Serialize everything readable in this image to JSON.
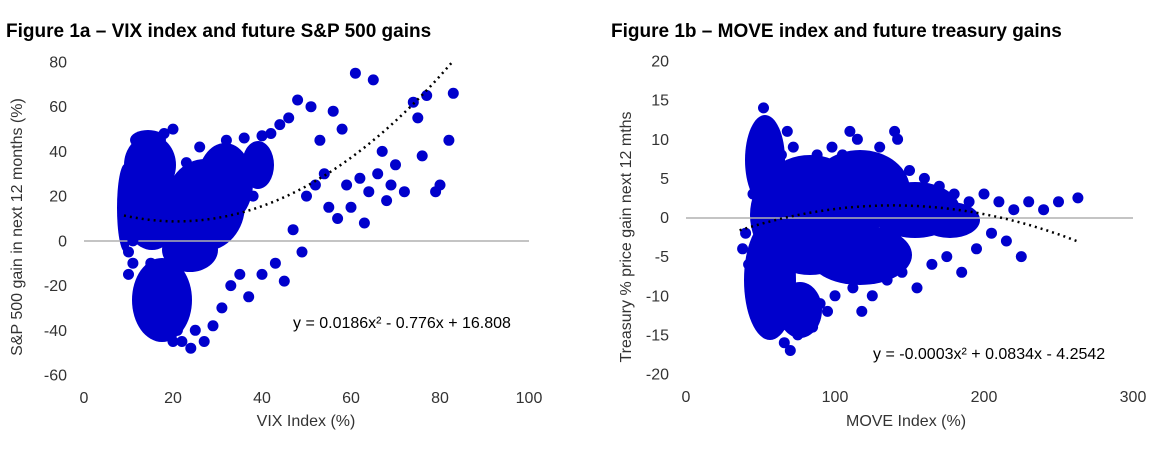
{
  "chart_data": [
    {
      "type": "scatter",
      "title": "Figure 1a – VIX index and future S&P 500 gains",
      "xlabel": "VIX Index  (%)",
      "ylabel": "S&P 500 gain in next 12 months (%)",
      "xlim": [
        0,
        100
      ],
      "ylim": [
        -60,
        80
      ],
      "xticks": [
        "0",
        "20",
        "40",
        "60",
        "80",
        "100"
      ],
      "yticks": [
        "-60",
        "-40",
        "-20",
        "0",
        "20",
        "40",
        "60",
        "80"
      ],
      "grid": false,
      "zero_line": true,
      "marker_color": "#0000CC",
      "trendline": {
        "type": "polynomial-2",
        "equation": "y = 0.0186x²  - 0.776x + 16.808",
        "coefficients": [
          0.0186,
          -0.776,
          16.808
        ],
        "x_range": [
          9,
          83
        ]
      },
      "points": [
        [
          10,
          -15
        ],
        [
          10,
          -5
        ],
        [
          11,
          -10
        ],
        [
          11,
          0
        ],
        [
          12,
          5
        ],
        [
          12,
          15
        ],
        [
          13,
          25
        ],
        [
          13,
          35
        ],
        [
          14,
          -20
        ],
        [
          14,
          30
        ],
        [
          15,
          -25
        ],
        [
          15,
          -10
        ],
        [
          16,
          -30
        ],
        [
          16,
          40
        ],
        [
          17,
          -35
        ],
        [
          17,
          45
        ],
        [
          18,
          -40
        ],
        [
          18,
          48
        ],
        [
          19,
          -42
        ],
        [
          20,
          -45
        ],
        [
          20,
          50
        ],
        [
          21,
          -40
        ],
        [
          22,
          -45
        ],
        [
          23,
          35
        ],
        [
          24,
          -48
        ],
        [
          25,
          -40
        ],
        [
          26,
          42
        ],
        [
          27,
          -45
        ],
        [
          28,
          30
        ],
        [
          29,
          -38
        ],
        [
          30,
          40
        ],
        [
          31,
          -30
        ],
        [
          32,
          45
        ],
        [
          33,
          -20
        ],
        [
          34,
          35
        ],
        [
          35,
          -15
        ],
        [
          36,
          46
        ],
        [
          37,
          -25
        ],
        [
          38,
          20
        ],
        [
          40,
          -15
        ],
        [
          40,
          47
        ],
        [
          42,
          48
        ],
        [
          43,
          -10
        ],
        [
          44,
          52
        ],
        [
          45,
          -18
        ],
        [
          46,
          55
        ],
        [
          47,
          5
        ],
        [
          48,
          63
        ],
        [
          49,
          -5
        ],
        [
          50,
          20
        ],
        [
          51,
          60
        ],
        [
          52,
          25
        ],
        [
          53,
          45
        ],
        [
          54,
          30
        ],
        [
          55,
          15
        ],
        [
          56,
          58
        ],
        [
          57,
          10
        ],
        [
          58,
          50
        ],
        [
          59,
          25
        ],
        [
          60,
          15
        ],
        [
          61,
          75
        ],
        [
          62,
          28
        ],
        [
          63,
          8
        ],
        [
          64,
          22
        ],
        [
          65,
          72
        ],
        [
          66,
          30
        ],
        [
          67,
          40
        ],
        [
          68,
          18
        ],
        [
          69,
          25
        ],
        [
          70,
          34
        ],
        [
          72,
          22
        ],
        [
          74,
          62
        ],
        [
          75,
          55
        ],
        [
          76,
          38
        ],
        [
          77,
          65
        ],
        [
          79,
          22
        ],
        [
          80,
          25
        ],
        [
          82,
          45
        ],
        [
          83,
          66
        ]
      ]
    },
    {
      "type": "scatter",
      "title": "Figure 1b – MOVE index and future treasury gains",
      "xlabel": "MOVE  Index  (%)",
      "ylabel": "Treasury % price gain next  12 mths",
      "xlim": [
        0,
        300
      ],
      "ylim": [
        -20,
        20
      ],
      "xticks": [
        "0",
        "100",
        "200",
        "300"
      ],
      "yticks": [
        "-20",
        "-15",
        "-10",
        "-5",
        "0",
        "5",
        "10",
        "15",
        "20"
      ],
      "grid": false,
      "zero_line": true,
      "marker_color": "#0000CC",
      "trendline": {
        "type": "polynomial-2",
        "equation": "y = -0.0003x²  + 0.0834x  - 4.2542",
        "coefficients": [
          -0.0003,
          0.0834,
          -4.2542
        ],
        "x_range": [
          36,
          263
        ]
      },
      "points": [
        [
          38,
          -4
        ],
        [
          40,
          -2
        ],
        [
          42,
          -6
        ],
        [
          45,
          3
        ],
        [
          48,
          -1
        ],
        [
          50,
          6
        ],
        [
          52,
          14
        ],
        [
          54,
          -8
        ],
        [
          56,
          12
        ],
        [
          58,
          -12
        ],
        [
          60,
          10
        ],
        [
          62,
          -14
        ],
        [
          64,
          8
        ],
        [
          66,
          -16
        ],
        [
          68,
          11
        ],
        [
          70,
          -17
        ],
        [
          72,
          9
        ],
        [
          75,
          -15
        ],
        [
          78,
          7
        ],
        [
          80,
          -13
        ],
        [
          82,
          6
        ],
        [
          85,
          -14
        ],
        [
          88,
          8
        ],
        [
          90,
          -11
        ],
        [
          92,
          5
        ],
        [
          95,
          -12
        ],
        [
          98,
          9
        ],
        [
          100,
          -10
        ],
        [
          105,
          8
        ],
        [
          110,
          11
        ],
        [
          112,
          -9
        ],
        [
          115,
          10
        ],
        [
          118,
          -12
        ],
        [
          120,
          7
        ],
        [
          125,
          -10
        ],
        [
          130,
          9
        ],
        [
          135,
          -8
        ],
        [
          140,
          11
        ],
        [
          142,
          10
        ],
        [
          145,
          -7
        ],
        [
          150,
          6
        ],
        [
          155,
          -9
        ],
        [
          160,
          5
        ],
        [
          165,
          -6
        ],
        [
          170,
          4
        ],
        [
          175,
          -5
        ],
        [
          180,
          3
        ],
        [
          185,
          -7
        ],
        [
          190,
          2
        ],
        [
          195,
          -4
        ],
        [
          200,
          3
        ],
        [
          205,
          -2
        ],
        [
          210,
          2
        ],
        [
          215,
          -3
        ],
        [
          220,
          1
        ],
        [
          225,
          -5
        ],
        [
          230,
          2
        ],
        [
          240,
          1
        ],
        [
          250,
          2
        ],
        [
          263,
          2.5
        ]
      ]
    }
  ]
}
